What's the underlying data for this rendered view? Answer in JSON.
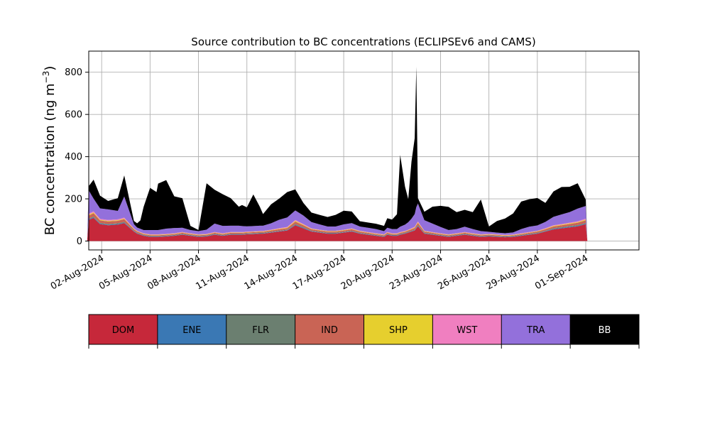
{
  "chart_data": {
    "type": "area",
    "stacked": true,
    "title": "Source contribution to BC concentrations (ECLIPSEv6 and CAMS)",
    "ylabel": "BC concentration (ng m⁻³)",
    "ylabel_parts": {
      "main": "BC concentration (ng m",
      "sup": "−3",
      "close": ")"
    },
    "xlabel": "",
    "ylim": [
      -42,
      900
    ],
    "xlim_days": [
      -0.8,
      33.3
    ],
    "grid": true,
    "yticks": [
      0,
      200,
      400,
      600,
      800
    ],
    "xticks": [
      "02-Aug-2024",
      "05-Aug-2024",
      "08-Aug-2024",
      "11-Aug-2024",
      "14-Aug-2024",
      "17-Aug-2024",
      "20-Aug-2024",
      "23-Aug-2024",
      "26-Aug-2024",
      "29-Aug-2024",
      "01-Sep-2024"
    ],
    "xtick_days": [
      0,
      3,
      6,
      9,
      12,
      15,
      18,
      21,
      24,
      27,
      30
    ],
    "x_days": [
      -0.9,
      -0.8,
      -0.5,
      -0.1,
      0.4,
      1.0,
      1.4,
      2.0,
      2.2,
      2.4,
      2.6,
      3.0,
      3.4,
      3.5,
      4.0,
      4.5,
      5.0,
      5.5,
      6.0,
      6.5,
      7.0,
      7.5,
      8.0,
      8.5,
      8.7,
      9.0,
      9.4,
      9.8,
      10.0,
      10.5,
      11.0,
      11.5,
      12.0,
      12.5,
      13.0,
      13.5,
      14.0,
      14.5,
      15.0,
      15.5,
      16.0,
      16.5,
      17.0,
      17.5,
      17.7,
      18.0,
      18.3,
      18.5,
      18.8,
      19.0,
      19.2,
      19.4,
      19.5,
      19.6,
      20.0,
      20.5,
      21.0,
      21.5,
      22.0,
      22.5,
      23.0,
      23.5,
      24.0,
      24.5,
      25.0,
      25.5,
      26.0,
      26.5,
      27.0,
      27.5,
      28.0,
      28.5,
      29.0,
      29.5,
      30.0,
      30.1
    ],
    "series": [
      {
        "name": "DOM",
        "color": "#c6283a",
        "values": [
          0,
          100,
          110,
          80,
          75,
          78,
          85,
          45,
          35,
          30,
          25,
          20,
          20,
          20,
          22,
          25,
          30,
          25,
          20,
          22,
          30,
          25,
          30,
          30,
          30,
          32,
          33,
          35,
          35,
          40,
          45,
          50,
          75,
          60,
          45,
          40,
          35,
          35,
          40,
          45,
          35,
          30,
          25,
          20,
          30,
          25,
          25,
          30,
          35,
          40,
          45,
          50,
          60,
          70,
          35,
          30,
          25,
          20,
          25,
          30,
          25,
          20,
          22,
          20,
          18,
          20,
          25,
          30,
          35,
          45,
          55,
          60,
          65,
          70,
          80,
          0
        ]
      },
      {
        "name": "ENE",
        "color": "#3a78b4",
        "values": [
          0,
          3,
          3,
          3,
          3,
          3,
          3,
          2,
          2,
          2,
          2,
          2,
          2,
          2,
          2,
          2,
          2,
          2,
          2,
          2,
          2,
          2,
          2,
          2,
          2,
          2,
          2,
          2,
          2,
          2,
          2,
          2,
          3,
          3,
          2,
          2,
          2,
          2,
          2,
          2,
          2,
          2,
          2,
          2,
          2,
          2,
          2,
          2,
          2,
          2,
          2,
          2,
          3,
          3,
          2,
          2,
          2,
          2,
          2,
          2,
          2,
          2,
          2,
          2,
          2,
          2,
          2,
          2,
          2,
          2,
          3,
          3,
          3,
          3,
          3,
          0
        ]
      },
      {
        "name": "FLR",
        "color": "#6b7f70",
        "values": [
          0,
          3,
          3,
          3,
          3,
          3,
          3,
          2,
          2,
          2,
          2,
          2,
          2,
          2,
          2,
          2,
          2,
          2,
          2,
          2,
          2,
          2,
          2,
          2,
          2,
          2,
          2,
          2,
          2,
          2,
          2,
          2,
          3,
          3,
          2,
          2,
          2,
          2,
          2,
          2,
          2,
          2,
          2,
          2,
          2,
          2,
          2,
          2,
          2,
          2,
          2,
          2,
          3,
          3,
          2,
          2,
          2,
          2,
          2,
          2,
          2,
          2,
          2,
          2,
          2,
          2,
          2,
          2,
          2,
          2,
          3,
          3,
          3,
          3,
          3,
          0
        ]
      },
      {
        "name": "IND",
        "color": "#c96455",
        "values": [
          0,
          15,
          16,
          12,
          12,
          12,
          13,
          7,
          6,
          5,
          4,
          4,
          4,
          4,
          4,
          4,
          5,
          4,
          4,
          4,
          5,
          4,
          5,
          5,
          5,
          5,
          5,
          5,
          5,
          6,
          7,
          7,
          11,
          9,
          7,
          6,
          6,
          6,
          6,
          7,
          6,
          5,
          4,
          4,
          5,
          4,
          4,
          5,
          5,
          6,
          7,
          8,
          9,
          10,
          6,
          5,
          4,
          4,
          4,
          5,
          4,
          4,
          4,
          4,
          3,
          3,
          4,
          5,
          6,
          7,
          8,
          9,
          10,
          11,
          12,
          0
        ]
      },
      {
        "name": "SHP",
        "color": "#e6cf2e",
        "values": [
          0,
          4,
          4,
          3,
          3,
          3,
          3,
          2,
          2,
          2,
          2,
          2,
          2,
          2,
          2,
          2,
          2,
          2,
          2,
          2,
          2,
          2,
          2,
          2,
          2,
          2,
          2,
          2,
          2,
          2,
          2,
          3,
          4,
          3,
          2,
          2,
          2,
          2,
          2,
          2,
          2,
          2,
          2,
          2,
          2,
          2,
          2,
          2,
          2,
          2,
          2,
          3,
          3,
          3,
          2,
          2,
          2,
          2,
          2,
          2,
          2,
          2,
          2,
          2,
          2,
          2,
          2,
          2,
          2,
          2,
          3,
          3,
          3,
          3,
          4,
          0
        ]
      },
      {
        "name": "WST",
        "color": "#f07fc0",
        "values": [
          0,
          5,
          5,
          4,
          4,
          4,
          4,
          2,
          2,
          2,
          2,
          2,
          2,
          2,
          2,
          2,
          2,
          2,
          2,
          2,
          2,
          2,
          2,
          2,
          2,
          2,
          2,
          2,
          2,
          2,
          3,
          3,
          4,
          3,
          2,
          2,
          2,
          2,
          2,
          2,
          2,
          2,
          2,
          2,
          2,
          2,
          2,
          2,
          2,
          2,
          3,
          3,
          3,
          4,
          2,
          2,
          2,
          2,
          2,
          2,
          2,
          2,
          2,
          2,
          2,
          2,
          2,
          2,
          2,
          3,
          3,
          3,
          3,
          4,
          4,
          0
        ]
      },
      {
        "name": "TRA",
        "color": "#9370db",
        "values": [
          0,
          110,
          60,
          50,
          50,
          40,
          100,
          20,
          15,
          15,
          15,
          20,
          20,
          20,
          25,
          25,
          20,
          15,
          15,
          20,
          40,
          35,
          30,
          30,
          28,
          25,
          25,
          25,
          25,
          30,
          40,
          45,
          45,
          40,
          30,
          25,
          20,
          20,
          25,
          25,
          20,
          20,
          20,
          15,
          20,
          20,
          20,
          25,
          30,
          35,
          45,
          60,
          80,
          85,
          50,
          40,
          30,
          20,
          20,
          25,
          20,
          15,
          10,
          8,
          8,
          10,
          20,
          25,
          25,
          30,
          40,
          45,
          50,
          60,
          60,
          0
        ]
      },
      {
        "name": "BB",
        "color": "#000000",
        "values": [
          0,
          20,
          90,
          60,
          40,
          60,
          100,
          15,
          20,
          40,
          110,
          200,
          180,
          220,
          230,
          150,
          140,
          20,
          5,
          220,
          160,
          150,
          130,
          90,
          100,
          90,
          150,
          90,
          55,
          90,
          100,
          120,
          100,
          60,
          45,
          45,
          45,
          55,
          65,
          55,
          25,
          25,
          25,
          25,
          45,
          45,
          70,
          340,
          180,
          110,
          270,
          360,
          665,
          25,
          40,
          80,
          100,
          110,
          80,
          80,
          80,
          150,
          25,
          55,
          70,
          90,
          130,
          130,
          130,
          90,
          120,
          130,
          120,
          120,
          30,
          0
        ]
      }
    ],
    "legend": [
      "DOM",
      "ENE",
      "FLR",
      "IND",
      "SHP",
      "WST",
      "TRA",
      "BB"
    ]
  }
}
